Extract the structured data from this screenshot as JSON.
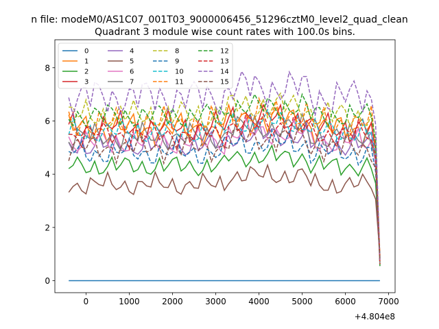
{
  "suptitle": "n file: modeM0/AS1C07_001T03_9000006456_51296cztM0_level2_quad_clean",
  "chart_data": {
    "type": "line",
    "title": "Quadrant 3 module wise count rates with 100.0s bins.",
    "xlabel": "",
    "ylabel": "",
    "x_offset_label": "+4.804e8",
    "xlim": [
      -720,
      7150
    ],
    "ylim": [
      -0.45,
      9.05
    ],
    "xticks": [
      0,
      1000,
      2000,
      3000,
      4000,
      5000,
      6000,
      7000
    ],
    "yticks": [
      0,
      2,
      4,
      6,
      8
    ],
    "grid": false,
    "legend": {
      "placement": "top-left",
      "ncol": 4
    },
    "x": [
      -400,
      -300,
      -200,
      -100,
      0,
      100,
      200,
      300,
      400,
      500,
      600,
      700,
      800,
      900,
      1000,
      1100,
      1200,
      1300,
      1400,
      1500,
      1600,
      1700,
      1800,
      1900,
      2000,
      2100,
      2200,
      2300,
      2400,
      2500,
      2600,
      2700,
      2800,
      2900,
      3000,
      3100,
      3200,
      3300,
      3400,
      3500,
      3600,
      3700,
      3800,
      3900,
      4000,
      4100,
      4200,
      4300,
      4400,
      4500,
      4600,
      4700,
      4800,
      4900,
      5000,
      5100,
      5200,
      5300,
      5400,
      5500,
      5600,
      5700,
      5800,
      5900,
      6000,
      6100,
      6200,
      6300,
      6400,
      6500,
      6600,
      6700,
      6800
    ],
    "series": [
      {
        "name": "0",
        "color": "#1f77b4",
        "dash": "solid",
        "base": 0.0,
        "amp": 0.0,
        "phase": 0.0
      },
      {
        "name": "1",
        "color": "#ff7f0e",
        "dash": "solid",
        "base": 5.7,
        "amp": 0.35,
        "phase": 0.6
      },
      {
        "name": "2",
        "color": "#2ca02c",
        "dash": "solid",
        "base": 4.3,
        "amp": 0.25,
        "phase": 1.3
      },
      {
        "name": "3",
        "color": "#d62728",
        "dash": "solid",
        "base": 5.75,
        "amp": 0.35,
        "phase": 2.1
      },
      {
        "name": "4",
        "color": "#9467bd",
        "dash": "solid",
        "base": 5.1,
        "amp": 0.3,
        "phase": 2.9
      },
      {
        "name": "5",
        "color": "#8c564b",
        "dash": "solid",
        "base": 3.6,
        "amp": 0.25,
        "phase": 3.6
      },
      {
        "name": "6",
        "color": "#e377c2",
        "dash": "solid",
        "base": 5.2,
        "amp": 0.3,
        "phase": 4.4
      },
      {
        "name": "7",
        "color": "#7f7f7f",
        "dash": "solid",
        "base": 5.4,
        "amp": 0.3,
        "phase": 5.2
      },
      {
        "name": "8",
        "color": "#bcbd22",
        "dash": "dashed",
        "base": 6.2,
        "amp": 0.35,
        "phase": 0.3
      },
      {
        "name": "9",
        "color": "#1f77b4",
        "dash": "dashed",
        "base": 4.8,
        "amp": 0.3,
        "phase": 1.0
      },
      {
        "name": "10",
        "color": "#17becf",
        "dash": "dashed",
        "base": 5.6,
        "amp": 0.3,
        "phase": 1.8
      },
      {
        "name": "11",
        "color": "#ff7f0e",
        "dash": "dashed",
        "base": 5.9,
        "amp": 0.35,
        "phase": 2.6
      },
      {
        "name": "12",
        "color": "#2ca02c",
        "dash": "dashed",
        "base": 6.2,
        "amp": 0.3,
        "phase": 3.3
      },
      {
        "name": "13",
        "color": "#d62728",
        "dash": "dashed",
        "base": 5.5,
        "amp": 0.3,
        "phase": 4.1
      },
      {
        "name": "14",
        "color": "#9467bd",
        "dash": "dashed",
        "base": 6.9,
        "amp": 0.45,
        "phase": 4.9
      },
      {
        "name": "15",
        "color": "#8c564b",
        "dash": "dashed",
        "base": 5.0,
        "amp": 0.3,
        "phase": 5.6
      }
    ]
  }
}
